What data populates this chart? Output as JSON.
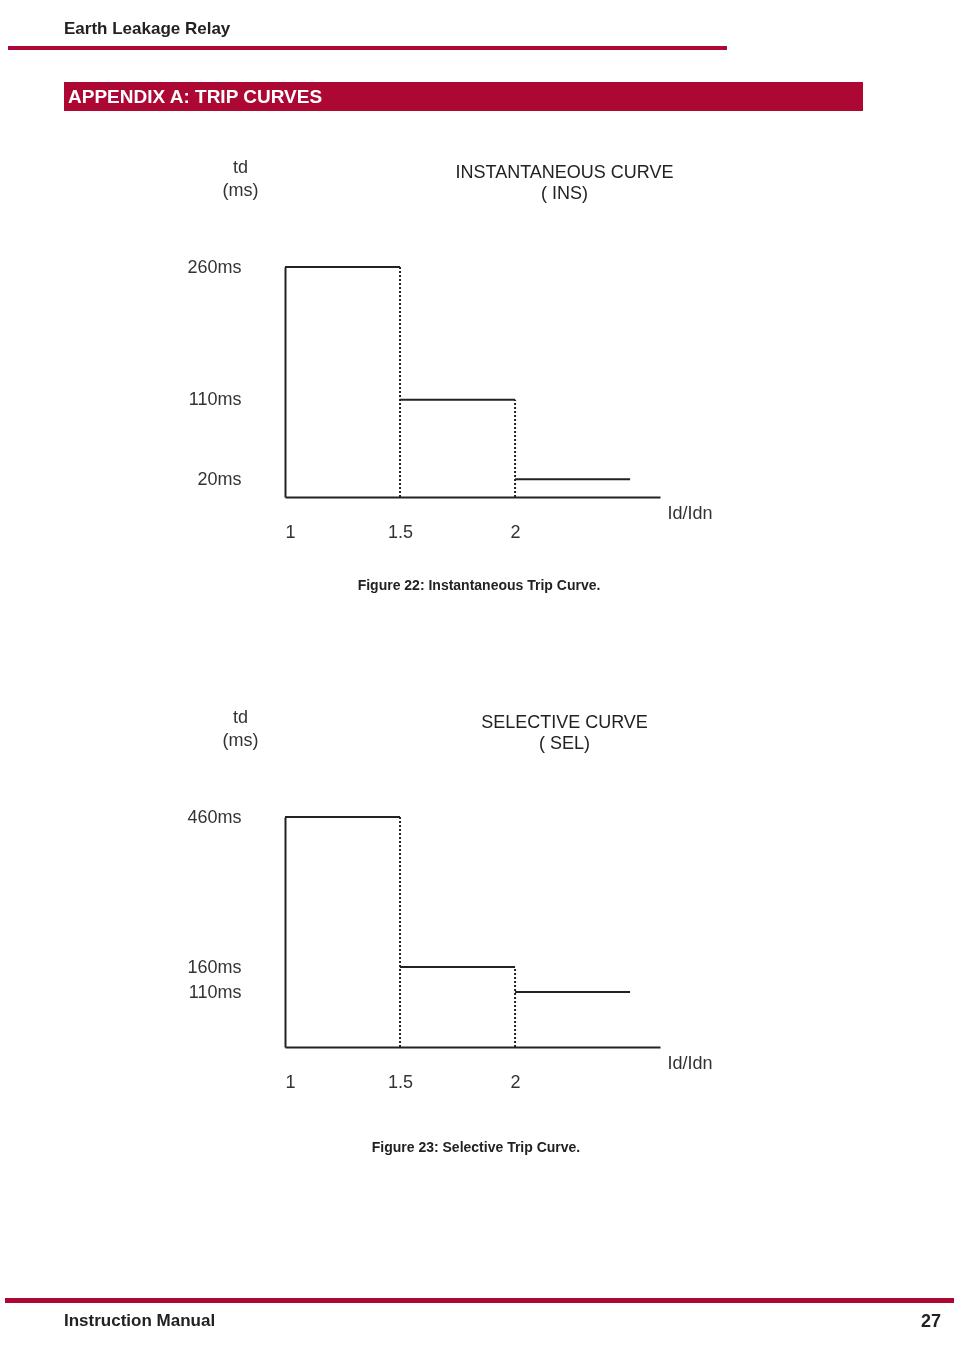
{
  "chart_data": [
    {
      "type": "line",
      "title": "INSTANTANEOUS CURVE",
      "subtitle": "( INS)",
      "xlabel": "Id/Idn",
      "ylabel": "td\n(ms)",
      "annotations": [
        "Earth Leakage Relay",
        "APPENDIX A: TRIP CURVES",
        "Figure 22: Instantaneous Trip Curve."
      ],
      "xlim": [
        1,
        2.63
      ],
      "xticks": [
        1,
        1.5,
        2
      ],
      "ylim": [
        0,
        260
      ],
      "yticks": [
        {
          "value": 20,
          "label": "20ms"
        },
        {
          "value": 110,
          "label": "110ms"
        },
        {
          "value": 260,
          "label": "260ms"
        }
      ],
      "series": [
        {
          "color": "#222222",
          "x": [
            1,
            1.5
          ],
          "values": [
            260,
            260
          ]
        },
        {
          "color": "#222222",
          "x": [
            1.5,
            1.5
          ],
          "values": [
            0,
            260
          ],
          "line_style": "dotted"
        },
        {
          "color": "#222222",
          "x": [
            1.5,
            2
          ],
          "values": [
            110,
            110
          ]
        },
        {
          "color": "#222222",
          "x": [
            2,
            2
          ],
          "values": [
            0,
            110
          ],
          "line_style": "dotted"
        },
        {
          "color": "#222222",
          "x": [
            2,
            2.5
          ],
          "values": [
            20,
            20
          ]
        }
      ]
    },
    {
      "type": "line",
      "title": "SELECTIVE CURVE",
      "subtitle": "( SEL)",
      "xlabel": "Id/Idn",
      "ylabel": "td\n(ms)",
      "annotations": [
        "Figure 23: Selective Trip Curve.",
        "Instruction Manual",
        "27"
      ],
      "xlim": [
        1,
        2.63
      ],
      "xticks": [
        1,
        1.5,
        2
      ],
      "ylim": [
        0,
        460
      ],
      "yticks": [
        {
          "value": 110,
          "label": "110ms"
        },
        {
          "value": 160,
          "label": "160ms"
        },
        {
          "value": 460,
          "label": "460ms"
        }
      ],
      "series": [
        {
          "color": "#222222",
          "x": [
            1,
            1.5
          ],
          "values": [
            460,
            460
          ]
        },
        {
          "color": "#222222",
          "x": [
            1.5,
            1.5
          ],
          "values": [
            0,
            460
          ],
          "line_style": "dotted"
        },
        {
          "color": "#222222",
          "x": [
            1.5,
            2
          ],
          "values": [
            160,
            160
          ]
        },
        {
          "color": "#222222",
          "x": [
            2,
            2
          ],
          "values": [
            0,
            160
          ],
          "line_style": "dotted"
        },
        {
          "color": "#222222",
          "x": [
            2,
            2.5
          ],
          "values": [
            110,
            110
          ]
        }
      ]
    }
  ]
}
